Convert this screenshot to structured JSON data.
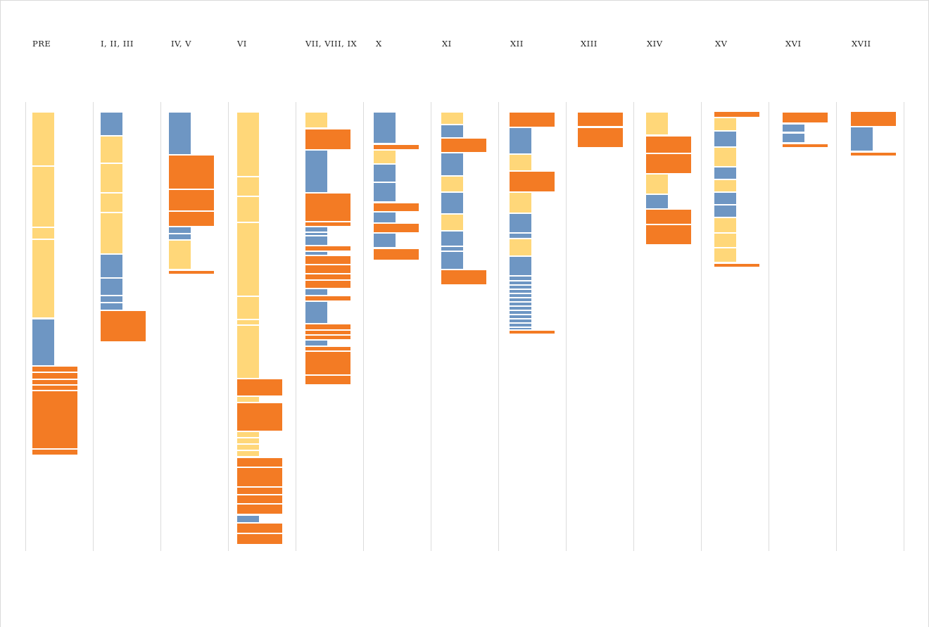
{
  "colors": {
    "yellow": "#FFD779",
    "blue": "#6E96C3",
    "orange": "#F37B24",
    "divider": "#dcdcdc"
  },
  "columns": [
    {
      "label": "PRE",
      "blocks": [
        [
          "yellow",
          160,
          235,
          0
        ],
        [
          "yellow",
          237,
          322,
          0
        ],
        [
          "yellow",
          324,
          339,
          0
        ],
        [
          "yellow",
          341,
          451,
          0
        ],
        [
          "blue",
          454,
          519,
          0
        ],
        [
          "orange",
          521,
          528,
          1
        ],
        [
          "orange",
          530,
          538,
          1
        ],
        [
          "orange",
          540,
          546,
          1
        ],
        [
          "orange",
          548,
          554,
          1
        ],
        [
          "orange",
          556,
          637,
          1
        ],
        [
          "orange",
          639,
          646,
          1
        ]
      ]
    },
    {
      "label": "I, II, III",
      "blocks": [
        [
          "blue",
          160,
          192,
          0
        ],
        [
          "yellow",
          194,
          231,
          0
        ],
        [
          "yellow",
          233,
          273,
          0
        ],
        [
          "yellow",
          275,
          301,
          0
        ],
        [
          "yellow",
          303,
          360,
          0
        ],
        [
          "blue",
          362,
          394,
          0
        ],
        [
          "blue",
          396,
          419,
          0
        ],
        [
          "blue",
          421,
          429,
          0
        ],
        [
          "blue",
          431,
          440,
          0
        ],
        [
          "orange",
          442,
          485,
          1
        ]
      ]
    },
    {
      "label": "IV, V",
      "blocks": [
        [
          "blue",
          160,
          219,
          0
        ],
        [
          "orange",
          221,
          268,
          1
        ],
        [
          "orange",
          270,
          299,
          1
        ],
        [
          "orange",
          301,
          321,
          1
        ],
        [
          "blue",
          323,
          331,
          0
        ],
        [
          "blue",
          333,
          340,
          0
        ],
        [
          "yellow",
          342,
          382,
          0
        ],
        [
          "orange",
          385,
          389,
          1
        ]
      ]
    },
    {
      "label": "VI",
      "blocks": [
        [
          "yellow",
          160,
          250,
          0
        ],
        [
          "yellow",
          252,
          278,
          0
        ],
        [
          "yellow",
          280,
          315,
          0
        ],
        [
          "yellow",
          317,
          420,
          0
        ],
        [
          "yellow",
          422,
          453,
          0
        ],
        [
          "yellow",
          455,
          461,
          0
        ],
        [
          "yellow",
          463,
          537,
          0
        ],
        [
          "orange",
          539,
          562,
          1
        ],
        [
          "yellow",
          564,
          571,
          0
        ],
        [
          "orange",
          573,
          612,
          1
        ],
        [
          "yellow",
          614,
          621,
          0
        ],
        [
          "yellow",
          623,
          630,
          0
        ],
        [
          "yellow",
          632,
          639,
          0
        ],
        [
          "yellow",
          641,
          648,
          0
        ],
        [
          "orange",
          651,
          663,
          1
        ],
        [
          "orange",
          665,
          691,
          1
        ],
        [
          "orange",
          693,
          702,
          1
        ],
        [
          "orange",
          704,
          715,
          1
        ],
        [
          "orange",
          717,
          730,
          1
        ],
        [
          "blue",
          733,
          742,
          0
        ],
        [
          "orange",
          744,
          757,
          1
        ],
        [
          "orange",
          759,
          773,
          1
        ]
      ]
    },
    {
      "label": "VII, VIII, IX",
      "blocks": [
        [
          "yellow",
          160,
          181,
          0
        ],
        [
          "orange",
          184,
          212,
          1
        ],
        [
          "blue",
          214,
          273,
          0
        ],
        [
          "orange",
          275,
          314,
          1
        ],
        [
          "orange",
          316,
          321,
          1
        ],
        [
          "blue",
          323,
          329,
          0
        ],
        [
          "blue",
          331,
          334,
          0
        ],
        [
          "blue",
          336,
          348,
          0
        ],
        [
          "orange",
          350,
          356,
          1
        ],
        [
          "blue",
          358,
          362,
          0
        ],
        [
          "orange",
          364,
          375,
          1
        ],
        [
          "orange",
          377,
          388,
          1
        ],
        [
          "orange",
          390,
          397,
          1
        ],
        [
          "orange",
          399,
          409,
          1
        ],
        [
          "blue",
          411,
          419,
          0
        ],
        [
          "orange",
          421,
          427,
          1
        ],
        [
          "blue",
          429,
          459,
          0
        ],
        [
          "orange",
          461,
          468,
          1
        ],
        [
          "orange",
          470,
          475,
          1
        ],
        [
          "orange",
          477,
          482,
          1
        ],
        [
          "blue",
          484,
          491,
          0
        ],
        [
          "orange",
          493,
          498,
          1
        ],
        [
          "orange",
          500,
          532,
          1
        ],
        [
          "orange",
          534,
          546,
          1
        ]
      ]
    },
    {
      "label": "X",
      "blocks": [
        [
          "blue",
          160,
          203,
          0
        ],
        [
          "orange",
          206,
          212,
          1
        ],
        [
          "yellow",
          214,
          232,
          0
        ],
        [
          "blue",
          234,
          258,
          0
        ],
        [
          "blue",
          260,
          286,
          0
        ],
        [
          "orange",
          289,
          300,
          1
        ],
        [
          "blue",
          302,
          316,
          0
        ],
        [
          "orange",
          318,
          330,
          1
        ],
        [
          "blue",
          332,
          351,
          0
        ],
        [
          "orange",
          354,
          369,
          1
        ]
      ]
    },
    {
      "label": "XI",
      "blocks": [
        [
          "yellow",
          160,
          176,
          0
        ],
        [
          "blue",
          178,
          195,
          0
        ],
        [
          "orange",
          197,
          216,
          1
        ],
        [
          "blue",
          218,
          249,
          0
        ],
        [
          "yellow",
          251,
          272,
          0
        ],
        [
          "blue",
          274,
          303,
          0
        ],
        [
          "yellow",
          305,
          327,
          0
        ],
        [
          "blue",
          329,
          349,
          0
        ],
        [
          "blue",
          351,
          356,
          0
        ],
        [
          "blue",
          358,
          382,
          0
        ],
        [
          "orange",
          384,
          404,
          1
        ]
      ]
    },
    {
      "label": "XII",
      "blocks": [
        [
          "orange",
          160,
          180,
          1
        ],
        [
          "blue",
          182,
          218,
          0
        ],
        [
          "yellow",
          220,
          242,
          0
        ],
        [
          "orange",
          244,
          272,
          1
        ],
        [
          "yellow",
          274,
          302,
          0
        ],
        [
          "blue",
          304,
          330,
          0
        ],
        [
          "blue",
          332,
          338,
          0
        ],
        [
          "yellow",
          340,
          363,
          0
        ],
        [
          "blue",
          365,
          391,
          0
        ],
        [
          "blue",
          393,
          398,
          0
        ],
        [
          "blue",
          400,
          404,
          0
        ],
        [
          "blue",
          406,
          410,
          0
        ],
        [
          "blue",
          412,
          416,
          0
        ],
        [
          "blue",
          418,
          422,
          0
        ],
        [
          "blue",
          424,
          428,
          0
        ],
        [
          "blue",
          430,
          434,
          0
        ],
        [
          "blue",
          436,
          440,
          0
        ],
        [
          "blue",
          442,
          446,
          0
        ],
        [
          "blue",
          448,
          452,
          0
        ],
        [
          "blue",
          454,
          458,
          0
        ],
        [
          "blue",
          460,
          464,
          0
        ],
        [
          "blue",
          466,
          468,
          0
        ],
        [
          "orange",
          470,
          474,
          1
        ]
      ]
    },
    {
      "label": "XIII",
      "blocks": [
        [
          "orange",
          160,
          179,
          1
        ],
        [
          "orange",
          182,
          209,
          1
        ]
      ]
    },
    {
      "label": "XIV",
      "blocks": [
        [
          "yellow",
          160,
          191,
          0
        ],
        [
          "orange",
          194,
          217,
          1
        ],
        [
          "orange",
          219,
          246,
          1
        ],
        [
          "yellow",
          248,
          275,
          0
        ],
        [
          "blue",
          277,
          296,
          0
        ],
        [
          "orange",
          298,
          318,
          1
        ],
        [
          "orange",
          320,
          347,
          1
        ]
      ]
    },
    {
      "label": "XV",
      "blocks": [
        [
          "orange",
          159,
          166,
          1
        ],
        [
          "yellow",
          168,
          185,
          0
        ],
        [
          "blue",
          187,
          208,
          0
        ],
        [
          "yellow",
          210,
          236,
          0
        ],
        [
          "blue",
          238,
          254,
          0
        ],
        [
          "yellow",
          256,
          272,
          0
        ],
        [
          "blue",
          274,
          290,
          0
        ],
        [
          "blue",
          292,
          308,
          0
        ],
        [
          "yellow",
          310,
          330,
          0
        ],
        [
          "yellow",
          332,
          351,
          0
        ],
        [
          "yellow",
          353,
          372,
          0
        ],
        [
          "orange",
          375,
          379,
          1
        ]
      ]
    },
    {
      "label": "XVI",
      "blocks": [
        [
          "orange",
          160,
          174,
          1
        ],
        [
          "blue",
          177,
          187,
          0
        ],
        [
          "blue",
          190,
          202,
          0
        ],
        [
          "orange",
          205,
          209,
          1
        ]
      ]
    },
    {
      "label": "XVII",
      "blocks": [
        [
          "orange",
          159,
          179,
          1
        ],
        [
          "blue",
          181,
          214,
          0
        ],
        [
          "orange",
          217,
          221,
          1
        ]
      ]
    }
  ]
}
